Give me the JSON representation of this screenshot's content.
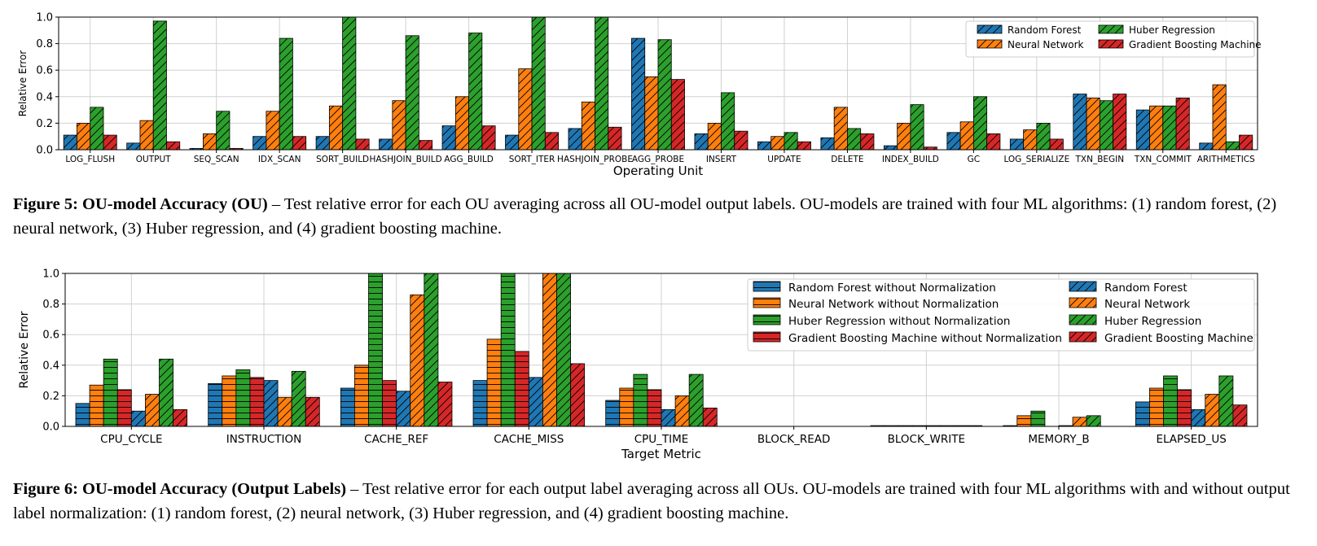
{
  "colors": {
    "random_forest": "#1f77b4",
    "neural_network": "#ff7f0e",
    "huber_regression": "#2ca02c",
    "gradient_boosting": "#d62728"
  },
  "captions": {
    "fig5_bold": "Figure 5: OU-model Accuracy (OU)",
    "fig5_text": " – Test relative error for each OU averaging across all OU-model output labels. OU-models are trained with four ML algorithms: (1) random forest, (2) neural network, (3) Huber regression, and (4) gradient boosting machine.",
    "fig6_bold": "Figure 6: OU-model Accuracy (Output Labels)",
    "fig6_text": " – Test relative error for each output label averaging across all OUs. OU-models are trained with four ML algorithms with and without output label normalization: (1) random forest, (2) neural network, (3) Huber regression, and (4) gradient boosting machine."
  },
  "chart_data": [
    {
      "type": "bar",
      "xlabel": "Operating Unit",
      "ylabel": "Relative Error",
      "ylim": [
        0,
        1.0
      ],
      "yticks": [
        "0.0",
        "0.2",
        "0.4",
        "0.6",
        "0.8",
        "1.0"
      ],
      "grid": true,
      "legend_position": "top-right",
      "categories": [
        "LOG_FLUSH",
        "OUTPUT",
        "SEQ_SCAN",
        "IDX_SCAN",
        "SORT_BUILD",
        "HASHJOIN_BUILD",
        "AGG_BUILD",
        "SORT_ITER",
        "HASHJOIN_PROBE",
        "AGG_PROBE",
        "INSERT",
        "UPDATE",
        "DELETE",
        "INDEX_BUILD",
        "GC",
        "LOG_SERIALIZE",
        "TXN_BEGIN",
        "TXN_COMMIT",
        "ARITHMETICS"
      ],
      "series": [
        {
          "name": "Random Forest",
          "color": "#1f77b4",
          "values": [
            0.11,
            0.05,
            0.01,
            0.1,
            0.1,
            0.08,
            0.18,
            0.11,
            0.16,
            0.84,
            0.12,
            0.06,
            0.09,
            0.03,
            0.13,
            0.08,
            0.42,
            0.3,
            0.05
          ]
        },
        {
          "name": "Neural Network",
          "color": "#ff7f0e",
          "values": [
            0.2,
            0.22,
            0.12,
            0.29,
            0.33,
            0.37,
            0.4,
            0.61,
            0.36,
            0.55,
            0.2,
            0.1,
            0.32,
            0.2,
            0.21,
            0.15,
            0.39,
            0.33,
            0.49
          ]
        },
        {
          "name": "Huber Regression",
          "color": "#2ca02c",
          "values": [
            0.32,
            0.97,
            0.29,
            0.84,
            1.0,
            0.86,
            0.88,
            1.0,
            1.0,
            0.83,
            0.43,
            0.13,
            0.16,
            0.34,
            0.4,
            0.2,
            0.37,
            0.33,
            0.06
          ]
        },
        {
          "name": "Gradient Boosting Machine",
          "color": "#d62728",
          "values": [
            0.11,
            0.06,
            0.01,
            0.1,
            0.08,
            0.07,
            0.18,
            0.13,
            0.17,
            0.53,
            0.14,
            0.06,
            0.12,
            0.02,
            0.12,
            0.08,
            0.42,
            0.39,
            0.11
          ]
        }
      ]
    },
    {
      "type": "bar",
      "xlabel": "Target Metric",
      "ylabel": "Relative Error",
      "ylim": [
        0,
        1.0
      ],
      "yticks": [
        "0.0",
        "0.2",
        "0.4",
        "0.6",
        "0.8",
        "1.0"
      ],
      "grid": true,
      "legend_position": "top-right",
      "categories": [
        "CPU_CYCLE",
        "INSTRUCTION",
        "CACHE_REF",
        "CACHE_MISS",
        "CPU_TIME",
        "BLOCK_READ",
        "BLOCK_WRITE",
        "MEMORY_B",
        "ELAPSED_US"
      ],
      "series": [
        {
          "name": "Random Forest without Normalization",
          "color": "#1f77b4",
          "values": [
            0.15,
            0.28,
            0.25,
            0.3,
            0.17,
            0.0,
            0.005,
            0.005,
            0.16
          ]
        },
        {
          "name": "Neural Network without Normalization",
          "color": "#ff7f0e",
          "values": [
            0.27,
            0.33,
            0.4,
            0.57,
            0.25,
            0.0,
            0.005,
            0.07,
            0.25
          ]
        },
        {
          "name": "Huber Regression without Normalization",
          "color": "#2ca02c",
          "values": [
            0.44,
            0.37,
            1.0,
            1.0,
            0.34,
            0.0,
            0.005,
            0.1,
            0.33
          ]
        },
        {
          "name": "Gradient Boosting Machine without Normalization",
          "color": "#d62728",
          "values": [
            0.24,
            0.32,
            0.3,
            0.49,
            0.24,
            0.0,
            0.005,
            0.0,
            0.24
          ]
        },
        {
          "name": "Random Forest",
          "color": "#1f77b4",
          "values": [
            0.1,
            0.3,
            0.23,
            0.32,
            0.11,
            0.0,
            0.005,
            0.005,
            0.11
          ]
        },
        {
          "name": "Neural Network",
          "color": "#ff7f0e",
          "values": [
            0.21,
            0.19,
            0.86,
            1.0,
            0.2,
            0.0,
            0.005,
            0.06,
            0.21
          ]
        },
        {
          "name": "Huber Regression",
          "color": "#2ca02c",
          "values": [
            0.44,
            0.36,
            1.0,
            1.0,
            0.34,
            0.0,
            0.005,
            0.07,
            0.33
          ]
        },
        {
          "name": "Gradient Boosting Machine",
          "color": "#d62728",
          "values": [
            0.11,
            0.19,
            0.29,
            0.41,
            0.12,
            0.0,
            0.005,
            0.0,
            0.14
          ]
        }
      ]
    }
  ]
}
